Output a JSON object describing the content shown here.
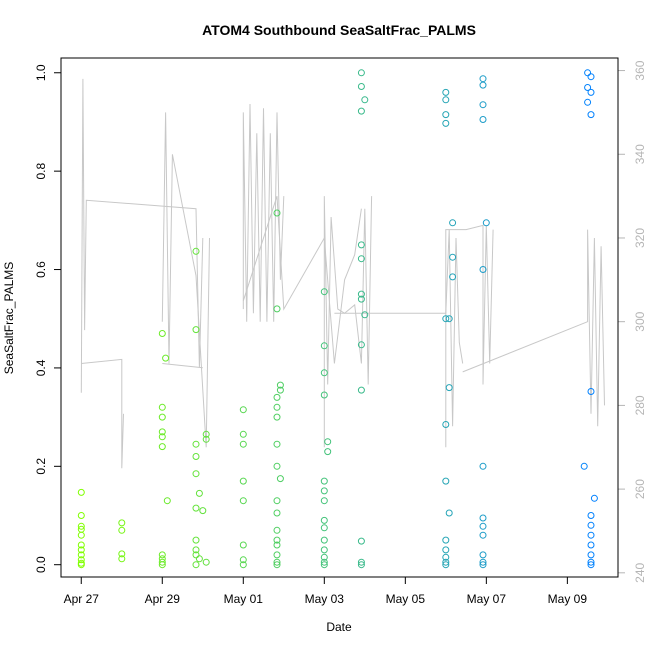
{
  "chart_data": {
    "type": "scatter",
    "title": "ATOM4 Southbound SeaSaltFrac_PALMS",
    "xlabel": "Date",
    "ylabel": "SeaSaltFrac_PALMS",
    "x_axis_type": "date",
    "xlim": [
      "2017-04-26T12:00",
      "2017-05-10T06:00"
    ],
    "ylim": [
      -0.025,
      1.03
    ],
    "y2lim": [
      239,
      363
    ],
    "grid": false,
    "legend": "none",
    "x_ticks": [
      {
        "date": "2017-04-27",
        "label": "Apr 27"
      },
      {
        "date": "2017-04-29",
        "label": "Apr 29"
      },
      {
        "date": "2017-05-01",
        "label": "May 01"
      },
      {
        "date": "2017-05-03",
        "label": "May 03"
      },
      {
        "date": "2017-05-05",
        "label": "May 05"
      },
      {
        "date": "2017-05-07",
        "label": "May 07"
      },
      {
        "date": "2017-05-09",
        "label": "May 09"
      }
    ],
    "y_ticks": [
      "0.0",
      "0.2",
      "0.4",
      "0.6",
      "0.8",
      "1.0"
    ],
    "y2_ticks": [
      "240",
      "260",
      "280",
      "300",
      "320",
      "340",
      "360"
    ],
    "point_color_start": "#80ff00",
    "point_color_end": "#0080ff",
    "line_color": "#c8c8c8",
    "points": [
      [
        "2017-04-27T00:00",
        0.147
      ],
      [
        "2017-04-27T00:00",
        0.1
      ],
      [
        "2017-04-27T00:00",
        0.078
      ],
      [
        "2017-04-27T00:00",
        0.072
      ],
      [
        "2017-04-27T00:00",
        0.06
      ],
      [
        "2017-04-27T00:00",
        0.04
      ],
      [
        "2017-04-27T00:00",
        0.03
      ],
      [
        "2017-04-27T00:00",
        0.02
      ],
      [
        "2017-04-27T00:00",
        0.01
      ],
      [
        "2017-04-27T00:00",
        0.003
      ],
      [
        "2017-04-27T00:00",
        0.0
      ],
      [
        "2017-04-28T00:00",
        0.085
      ],
      [
        "2017-04-28T00:00",
        0.07
      ],
      [
        "2017-04-28T00:00",
        0.022
      ],
      [
        "2017-04-28T00:00",
        0.012
      ],
      [
        "2017-04-29T00:00",
        0.47
      ],
      [
        "2017-04-29T02:00",
        0.42
      ],
      [
        "2017-04-29T00:00",
        0.32
      ],
      [
        "2017-04-29T00:00",
        0.3
      ],
      [
        "2017-04-29T00:00",
        0.27
      ],
      [
        "2017-04-29T00:00",
        0.26
      ],
      [
        "2017-04-29T00:00",
        0.24
      ],
      [
        "2017-04-29T03:00",
        0.13
      ],
      [
        "2017-04-29T00:00",
        0.02
      ],
      [
        "2017-04-29T00:00",
        0.012
      ],
      [
        "2017-04-29T00:00",
        0.005
      ],
      [
        "2017-04-29T00:00",
        0.0
      ],
      [
        "2017-04-29T20:00",
        0.637
      ],
      [
        "2017-04-29T20:00",
        0.478
      ],
      [
        "2017-04-30T02:00",
        0.265
      ],
      [
        "2017-04-30T02:00",
        0.255
      ],
      [
        "2017-04-29T20:00",
        0.245
      ],
      [
        "2017-04-29T20:00",
        0.22
      ],
      [
        "2017-04-29T20:00",
        0.185
      ],
      [
        "2017-04-29T22:00",
        0.145
      ],
      [
        "2017-04-29T20:00",
        0.115
      ],
      [
        "2017-04-30T00:00",
        0.11
      ],
      [
        "2017-04-29T20:00",
        0.05
      ],
      [
        "2017-04-29T20:00",
        0.03
      ],
      [
        "2017-04-29T20:00",
        0.02
      ],
      [
        "2017-04-29T22:00",
        0.012
      ],
      [
        "2017-04-30T02:00",
        0.005
      ],
      [
        "2017-04-29T20:00",
        0.0
      ],
      [
        "2017-05-01T00:00",
        0.315
      ],
      [
        "2017-05-01T00:00",
        0.265
      ],
      [
        "2017-05-01T00:00",
        0.245
      ],
      [
        "2017-05-01T00:00",
        0.17
      ],
      [
        "2017-05-01T00:00",
        0.13
      ],
      [
        "2017-05-01T00:00",
        0.04
      ],
      [
        "2017-05-01T00:00",
        0.01
      ],
      [
        "2017-05-01T00:00",
        0.0
      ],
      [
        "2017-05-01T20:00",
        0.715
      ],
      [
        "2017-05-01T20:00",
        0.52
      ],
      [
        "2017-05-01T22:00",
        0.365
      ],
      [
        "2017-05-01T22:00",
        0.355
      ],
      [
        "2017-05-01T20:00",
        0.34
      ],
      [
        "2017-05-01T20:00",
        0.32
      ],
      [
        "2017-05-01T20:00",
        0.3
      ],
      [
        "2017-05-01T20:00",
        0.245
      ],
      [
        "2017-05-01T20:00",
        0.2
      ],
      [
        "2017-05-01T22:00",
        0.175
      ],
      [
        "2017-05-01T20:00",
        0.13
      ],
      [
        "2017-05-01T20:00",
        0.105
      ],
      [
        "2017-05-01T20:00",
        0.07
      ],
      [
        "2017-05-01T20:00",
        0.05
      ],
      [
        "2017-05-01T20:00",
        0.04
      ],
      [
        "2017-05-01T20:00",
        0.02
      ],
      [
        "2017-05-01T20:00",
        0.005
      ],
      [
        "2017-05-01T20:00",
        0.0
      ],
      [
        "2017-05-03T00:00",
        0.555
      ],
      [
        "2017-05-03T00:00",
        0.445
      ],
      [
        "2017-05-03T00:00",
        0.39
      ],
      [
        "2017-05-03T00:00",
        0.345
      ],
      [
        "2017-05-03T02:00",
        0.25
      ],
      [
        "2017-05-03T02:00",
        0.23
      ],
      [
        "2017-05-03T00:00",
        0.17
      ],
      [
        "2017-05-03T00:00",
        0.15
      ],
      [
        "2017-05-03T00:00",
        0.13
      ],
      [
        "2017-05-03T00:00",
        0.09
      ],
      [
        "2017-05-03T00:00",
        0.075
      ],
      [
        "2017-05-03T00:00",
        0.05
      ],
      [
        "2017-05-03T00:00",
        0.03
      ],
      [
        "2017-05-03T00:00",
        0.015
      ],
      [
        "2017-05-03T00:00",
        0.005
      ],
      [
        "2017-05-03T00:00",
        0.0
      ],
      [
        "2017-05-03T22:00",
        1.0
      ],
      [
        "2017-05-03T22:00",
        0.972
      ],
      [
        "2017-05-04T00:00",
        0.945
      ],
      [
        "2017-05-03T22:00",
        0.922
      ],
      [
        "2017-05-03T22:00",
        0.65
      ],
      [
        "2017-05-03T22:00",
        0.622
      ],
      [
        "2017-05-03T22:00",
        0.55
      ],
      [
        "2017-05-03T22:00",
        0.54
      ],
      [
        "2017-05-04T00:00",
        0.508
      ],
      [
        "2017-05-03T22:00",
        0.447
      ],
      [
        "2017-05-03T22:00",
        0.355
      ],
      [
        "2017-05-03T22:00",
        0.048
      ],
      [
        "2017-05-03T22:00",
        0.005
      ],
      [
        "2017-05-03T22:00",
        0.0
      ],
      [
        "2017-05-06T00:00",
        0.915
      ],
      [
        "2017-05-06T00:00",
        0.897
      ],
      [
        "2017-05-06T00:00",
        0.96
      ],
      [
        "2017-05-06T00:00",
        0.945
      ],
      [
        "2017-05-06T04:00",
        0.695
      ],
      [
        "2017-05-06T04:00",
        0.625
      ],
      [
        "2017-05-06T04:00",
        0.585
      ],
      [
        "2017-05-06T00:00",
        0.5
      ],
      [
        "2017-05-06T02:00",
        0.5
      ],
      [
        "2017-05-06T02:00",
        0.36
      ],
      [
        "2017-05-06T00:00",
        0.285
      ],
      [
        "2017-05-06T00:00",
        0.17
      ],
      [
        "2017-05-06T02:00",
        0.105
      ],
      [
        "2017-05-06T00:00",
        0.05
      ],
      [
        "2017-05-06T00:00",
        0.03
      ],
      [
        "2017-05-06T00:00",
        0.015
      ],
      [
        "2017-05-06T00:00",
        0.005
      ],
      [
        "2017-05-06T00:00",
        0.0
      ],
      [
        "2017-05-06T22:00",
        0.988
      ],
      [
        "2017-05-06T22:00",
        0.975
      ],
      [
        "2017-05-06T22:00",
        0.935
      ],
      [
        "2017-05-06T22:00",
        0.905
      ],
      [
        "2017-05-07T00:00",
        0.695
      ],
      [
        "2017-05-06T22:00",
        0.6
      ],
      [
        "2017-05-06T22:00",
        0.2
      ],
      [
        "2017-05-06T22:00",
        0.095
      ],
      [
        "2017-05-06T22:00",
        0.078
      ],
      [
        "2017-05-06T22:00",
        0.06
      ],
      [
        "2017-05-06T22:00",
        0.02
      ],
      [
        "2017-05-06T22:00",
        0.005
      ],
      [
        "2017-05-06T22:00",
        0.0
      ],
      [
        "2017-05-09T12:00",
        1.0
      ],
      [
        "2017-05-09T14:00",
        0.992
      ],
      [
        "2017-05-09T12:00",
        0.97
      ],
      [
        "2017-05-09T14:00",
        0.96
      ],
      [
        "2017-05-09T12:00",
        0.94
      ],
      [
        "2017-05-09T14:00",
        0.915
      ],
      [
        "2017-05-09T14:00",
        0.352
      ],
      [
        "2017-05-09T10:00",
        0.2
      ],
      [
        "2017-05-09T16:00",
        0.135
      ],
      [
        "2017-05-09T14:00",
        0.1
      ],
      [
        "2017-05-09T14:00",
        0.08
      ],
      [
        "2017-05-09T14:00",
        0.06
      ],
      [
        "2017-05-09T14:00",
        0.04
      ],
      [
        "2017-05-09T14:00",
        0.02
      ],
      [
        "2017-05-09T14:00",
        0.005
      ],
      [
        "2017-05-09T14:00",
        0.0
      ]
    ],
    "right_axis_segments": [
      [
        [
          "2017-04-27T00:00",
          283
        ],
        [
          "2017-04-27T01:00",
          358
        ],
        [
          "2017-04-27T02:00",
          298
        ],
        [
          "2017-04-27T03:00",
          329
        ],
        [
          "2017-04-29T20:00",
          327
        ],
        [
          "2017-04-29T22:00",
          289
        ],
        [
          "2017-04-30T00:00",
          320
        ]
      ],
      [
        [
          "2017-04-27T00:00",
          290
        ],
        [
          "2017-04-28T00:00",
          291
        ],
        [
          "2017-04-28T00:00",
          265
        ],
        [
          "2017-04-28T01:00",
          278
        ]
      ],
      [
        [
          "2017-04-29T00:00",
          300
        ],
        [
          "2017-04-29T02:00",
          350
        ],
        [
          "2017-04-29T04:00",
          290
        ],
        [
          "2017-04-29T06:00",
          340
        ],
        [
          "2017-04-29T20:00",
          311
        ],
        [
          "2017-04-30T02:00",
          270
        ],
        [
          "2017-04-30T04:00",
          320
        ]
      ],
      [
        [
          "2017-04-29T00:00",
          290
        ],
        [
          "2017-04-30T00:00",
          289
        ]
      ],
      [
        [
          "2017-05-01T00:00",
          303
        ],
        [
          "2017-05-01T00:00",
          350
        ],
        [
          "2017-05-01T02:00",
          300
        ],
        [
          "2017-05-01T04:00",
          352
        ],
        [
          "2017-05-01T06:00",
          302
        ],
        [
          "2017-05-01T08:00",
          345
        ],
        [
          "2017-05-01T10:00",
          300
        ],
        [
          "2017-05-01T12:00",
          351
        ],
        [
          "2017-05-01T14:00",
          300
        ],
        [
          "2017-05-01T16:00",
          345
        ],
        [
          "2017-05-01T18:00",
          300
        ],
        [
          "2017-05-01T20:00",
          350
        ],
        [
          "2017-05-01T22:00",
          310
        ],
        [
          "2017-05-02T00:00",
          330
        ]
      ],
      [
        [
          "2017-05-01T00:00",
          305
        ],
        [
          "2017-05-01T20:00",
          330
        ],
        [
          "2017-05-02T00:00",
          303
        ],
        [
          "2017-05-03T00:00",
          320
        ],
        [
          "2017-05-03T06:00",
          290
        ],
        [
          "2017-05-03T12:00",
          310
        ],
        [
          "2017-05-03T18:00",
          316
        ],
        [
          "2017-05-03T22:00",
          327
        ]
      ],
      [
        [
          "2017-05-03T00:00",
          270
        ],
        [
          "2017-05-03T00:00",
          330
        ],
        [
          "2017-05-03T02:00",
          285
        ],
        [
          "2017-05-03T04:00",
          325
        ],
        [
          "2017-05-03T08:00",
          303
        ],
        [
          "2017-05-03T12:00",
          302
        ],
        [
          "2017-05-03T18:00",
          304
        ],
        [
          "2017-05-03T22:00",
          290
        ],
        [
          "2017-05-04T00:00",
          327
        ],
        [
          "2017-05-04T02:00",
          285
        ],
        [
          "2017-05-04T04:00",
          330
        ]
      ],
      [
        [
          "2017-05-03T06:00",
          302
        ],
        [
          "2017-05-06T00:00",
          302
        ],
        [
          "2017-05-06T02:00",
          322
        ],
        [
          "2017-05-06T04:00",
          275
        ],
        [
          "2017-05-06T06:00",
          320
        ],
        [
          "2017-05-06T08:00",
          295
        ],
        [
          "2017-05-06T10:00",
          290
        ]
      ],
      [
        [
          "2017-05-06T00:00",
          270
        ],
        [
          "2017-05-06T00:00",
          322
        ],
        [
          "2017-05-06T12:00",
          322
        ],
        [
          "2017-05-06T22:00",
          323
        ],
        [
          "2017-05-06T22:00",
          285
        ],
        [
          "2017-05-07T00:00",
          323
        ],
        [
          "2017-05-07T02:00",
          290
        ],
        [
          "2017-05-07T04:00",
          322
        ]
      ],
      [
        [
          "2017-05-06T10:00",
          288
        ],
        [
          "2017-05-09T12:00",
          300
        ],
        [
          "2017-05-09T12:00",
          322
        ],
        [
          "2017-05-09T14:00",
          278
        ],
        [
          "2017-05-09T16:00",
          320
        ],
        [
          "2017-05-09T18:00",
          275
        ],
        [
          "2017-05-09T20:00",
          318
        ],
        [
          "2017-05-09T22:00",
          280
        ]
      ]
    ]
  }
}
